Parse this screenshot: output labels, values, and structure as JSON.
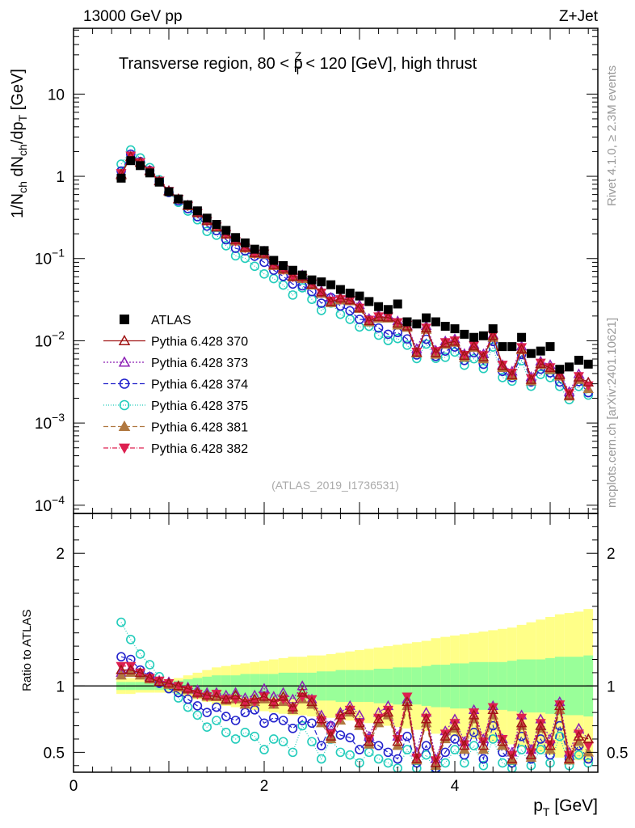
{
  "header": {
    "left": "13000 GeV pp",
    "right": "Z+Jet"
  },
  "side": {
    "rivet": "Rivet 4.1.0, ≥ 2.3M events",
    "mcplots": "mcplots.cern.ch [arXiv:2401.10621]"
  },
  "chart_data": {
    "type": "scatter",
    "title_parts": {
      "prefix": "Transverse region, 80 < p",
      "sup": "Z",
      "sub": "T",
      "suffix": " < 120 [GeV], high thrust"
    },
    "watermark": "(ATLAS_2019_I1736531)",
    "ylabel_main": {
      "a": "1/N",
      "a_sub": "ch",
      "b": " dN",
      "b_sub": "ch",
      "c": "/dp",
      "c_sub": "T",
      "d": " [GeV]"
    },
    "ylabel_ratio": "Ratio to ATLAS",
    "xlabel": {
      "a": "p",
      "a_sub": "T",
      "b": " [GeV]"
    },
    "xlim": [
      0,
      5.5
    ],
    "ylim_main_log10": [
      -4.1,
      1.8
    ],
    "ylim_ratio": [
      0.35,
      2.3
    ],
    "x_ticks": [
      "0",
      "2",
      "4"
    ],
    "y_ticks_main": [
      {
        "base": "10",
        "exp": "",
        "label": "10"
      },
      {
        "base": "1",
        "exp": "",
        "label": "1"
      },
      {
        "base": "10",
        "exp": "−1",
        "label": "10^-1"
      },
      {
        "base": "10",
        "exp": "−2",
        "label": "10^-2"
      },
      {
        "base": "10",
        "exp": "−3",
        "label": "10^-3"
      },
      {
        "base": "10",
        "exp": "−4",
        "label": "10^-4"
      }
    ],
    "y_ticks_ratio": [
      "2",
      "1",
      "0.5"
    ],
    "x": [
      0.5,
      0.6,
      0.7,
      0.8,
      0.9,
      1.0,
      1.1,
      1.2,
      1.3,
      1.4,
      1.5,
      1.6,
      1.7,
      1.8,
      1.9,
      2.0,
      2.1,
      2.2,
      2.3,
      2.4,
      2.5,
      2.6,
      2.7,
      2.8,
      2.9,
      3.0,
      3.1,
      3.2,
      3.3,
      3.4,
      3.5,
      3.6,
      3.7,
      3.8,
      3.9,
      4.0,
      4.1,
      4.2,
      4.3,
      4.4,
      4.5,
      4.6,
      4.7,
      4.8,
      4.9,
      5.0,
      5.1,
      5.2,
      5.3,
      5.4
    ],
    "data": {
      "name": "ATLAS",
      "values": [
        0.95,
        1.55,
        1.35,
        1.1,
        0.85,
        0.65,
        0.53,
        0.45,
        0.38,
        0.31,
        0.26,
        0.22,
        0.18,
        0.155,
        0.13,
        0.125,
        0.095,
        0.082,
        0.072,
        0.063,
        0.055,
        0.052,
        0.048,
        0.042,
        0.038,
        0.035,
        0.03,
        0.026,
        0.024,
        0.028,
        0.017,
        0.016,
        0.019,
        0.017,
        0.015,
        0.014,
        0.012,
        0.011,
        0.0115,
        0.014,
        0.0085,
        0.0085,
        0.011,
        0.007,
        0.0075,
        0.0085,
        0.0045,
        0.0048,
        0.0058,
        0.0052
      ]
    },
    "band_inner": [
      0.03,
      0.03,
      0.03,
      0.03,
      0.03,
      0.03,
      0.04,
      0.05,
      0.06,
      0.07,
      0.08,
      0.08,
      0.08,
      0.09,
      0.09,
      0.09,
      0.09,
      0.1,
      0.1,
      0.1,
      0.1,
      0.11,
      0.11,
      0.12,
      0.12,
      0.12,
      0.12,
      0.13,
      0.13,
      0.14,
      0.14,
      0.14,
      0.15,
      0.16,
      0.16,
      0.17,
      0.17,
      0.18,
      0.18,
      0.18,
      0.18,
      0.19,
      0.2,
      0.2,
      0.2,
      0.21,
      0.22,
      0.22,
      0.22,
      0.23
    ],
    "band_outer": [
      0.06,
      0.06,
      0.05,
      0.05,
      0.05,
      0.05,
      0.06,
      0.08,
      0.1,
      0.12,
      0.14,
      0.15,
      0.16,
      0.17,
      0.18,
      0.19,
      0.2,
      0.21,
      0.22,
      0.22,
      0.23,
      0.23,
      0.24,
      0.25,
      0.26,
      0.27,
      0.28,
      0.29,
      0.3,
      0.31,
      0.32,
      0.33,
      0.34,
      0.36,
      0.37,
      0.38,
      0.39,
      0.4,
      0.41,
      0.42,
      0.43,
      0.44,
      0.46,
      0.48,
      0.5,
      0.52,
      0.54,
      0.55,
      0.56,
      0.58
    ],
    "series": [
      {
        "name": "Pythia 6.428 370",
        "color": "#a01515",
        "marker": "tri-up-open",
        "dash": "",
        "ratio": [
          1.12,
          1.12,
          1.1,
          1.06,
          1.03,
          1.02,
          1.0,
          0.98,
          0.95,
          0.93,
          0.92,
          0.9,
          0.93,
          0.88,
          0.9,
          0.92,
          0.88,
          0.92,
          0.84,
          0.95,
          0.88,
          0.75,
          0.62,
          0.78,
          0.82,
          0.72,
          0.58,
          0.75,
          0.8,
          0.58,
          0.88,
          0.45,
          0.75,
          0.42,
          0.62,
          0.7,
          0.55,
          0.78,
          0.55,
          0.82,
          0.58,
          0.45,
          0.72,
          0.48,
          0.7,
          0.55,
          0.85,
          0.45,
          0.62,
          0.6
        ]
      },
      {
        "name": "Pythia 6.428 373",
        "color": "#8c1fb5",
        "marker": "tri-up-open",
        "dash": "2,2",
        "ratio": [
          1.1,
          1.13,
          1.1,
          1.07,
          1.04,
          1.03,
          1.0,
          0.99,
          0.97,
          0.95,
          0.95,
          0.93,
          0.95,
          0.91,
          0.93,
          0.98,
          0.92,
          0.95,
          0.9,
          1.0,
          0.9,
          0.78,
          0.7,
          0.8,
          0.85,
          0.78,
          0.62,
          0.8,
          0.85,
          0.62,
          0.9,
          0.5,
          0.8,
          0.45,
          0.66,
          0.75,
          0.58,
          0.82,
          0.6,
          0.85,
          0.6,
          0.5,
          0.78,
          0.52,
          0.75,
          0.6,
          0.88,
          0.5,
          0.68,
          0.6
        ]
      },
      {
        "name": "Pythia 6.428 374",
        "color": "#2222cc",
        "marker": "circle-open",
        "dash": "6,3",
        "ratio": [
          1.22,
          1.2,
          1.12,
          1.07,
          1.02,
          0.98,
          0.95,
          0.9,
          0.85,
          0.8,
          0.84,
          0.77,
          0.74,
          0.8,
          0.82,
          0.72,
          0.76,
          0.74,
          0.68,
          0.74,
          0.72,
          0.55,
          0.7,
          0.63,
          0.61,
          0.52,
          0.6,
          0.55,
          0.5,
          0.45,
          0.62,
          0.42,
          0.55,
          0.38,
          0.5,
          0.6,
          0.48,
          0.65,
          0.45,
          0.7,
          0.5,
          0.42,
          0.62,
          0.45,
          0.6,
          0.48,
          0.7,
          0.45,
          0.55,
          0.45
        ]
      },
      {
        "name": "Pythia 6.428 375",
        "color": "#22ccbb",
        "marker": "circle-open",
        "dash": "1,2",
        "ratio": [
          1.48,
          1.35,
          1.24,
          1.16,
          1.07,
          0.98,
          0.91,
          0.84,
          0.78,
          0.69,
          0.74,
          0.65,
          0.6,
          0.65,
          0.62,
          0.52,
          0.6,
          0.58,
          0.5,
          0.7,
          0.58,
          0.45,
          0.6,
          0.5,
          0.48,
          0.42,
          0.5,
          0.45,
          0.42,
          0.38,
          0.52,
          0.38,
          0.48,
          0.36,
          0.42,
          0.52,
          0.42,
          0.55,
          0.4,
          0.6,
          0.42,
          0.38,
          0.52,
          0.4,
          0.52,
          0.42,
          0.62,
          0.4,
          0.48,
          0.42
        ]
      },
      {
        "name": "Pythia 6.428 381",
        "color": "#b07840",
        "marker": "tri-up-filled",
        "dash": "6,3",
        "ratio": [
          1.08,
          1.1,
          1.08,
          1.05,
          1.03,
          1.01,
          0.99,
          0.97,
          0.94,
          0.92,
          0.93,
          0.89,
          0.9,
          0.86,
          0.88,
          0.9,
          0.86,
          0.88,
          0.82,
          0.9,
          0.86,
          0.72,
          0.6,
          0.74,
          0.8,
          0.7,
          0.56,
          0.72,
          0.78,
          0.55,
          0.85,
          0.44,
          0.72,
          0.4,
          0.6,
          0.68,
          0.52,
          0.75,
          0.52,
          0.78,
          0.55,
          0.44,
          0.7,
          0.46,
          0.68,
          0.52,
          0.82,
          0.44,
          0.58,
          0.5
        ]
      },
      {
        "name": "Pythia 6.428 382",
        "color": "#dd2050",
        "marker": "tri-down-filled",
        "dash": "6,2,1,2",
        "ratio": [
          1.15,
          1.15,
          1.1,
          1.06,
          1.04,
          1.02,
          1.0,
          0.97,
          0.94,
          0.92,
          0.94,
          0.9,
          0.9,
          0.87,
          0.88,
          0.92,
          0.87,
          0.9,
          0.83,
          0.92,
          0.9,
          0.74,
          0.64,
          0.76,
          0.82,
          0.72,
          0.6,
          0.76,
          0.82,
          0.6,
          0.92,
          0.46,
          0.76,
          0.44,
          0.64,
          0.72,
          0.56,
          0.8,
          0.58,
          0.84,
          0.6,
          0.48,
          0.76,
          0.5,
          0.72,
          0.56,
          0.86,
          0.48,
          0.64,
          0.55
        ]
      }
    ]
  }
}
